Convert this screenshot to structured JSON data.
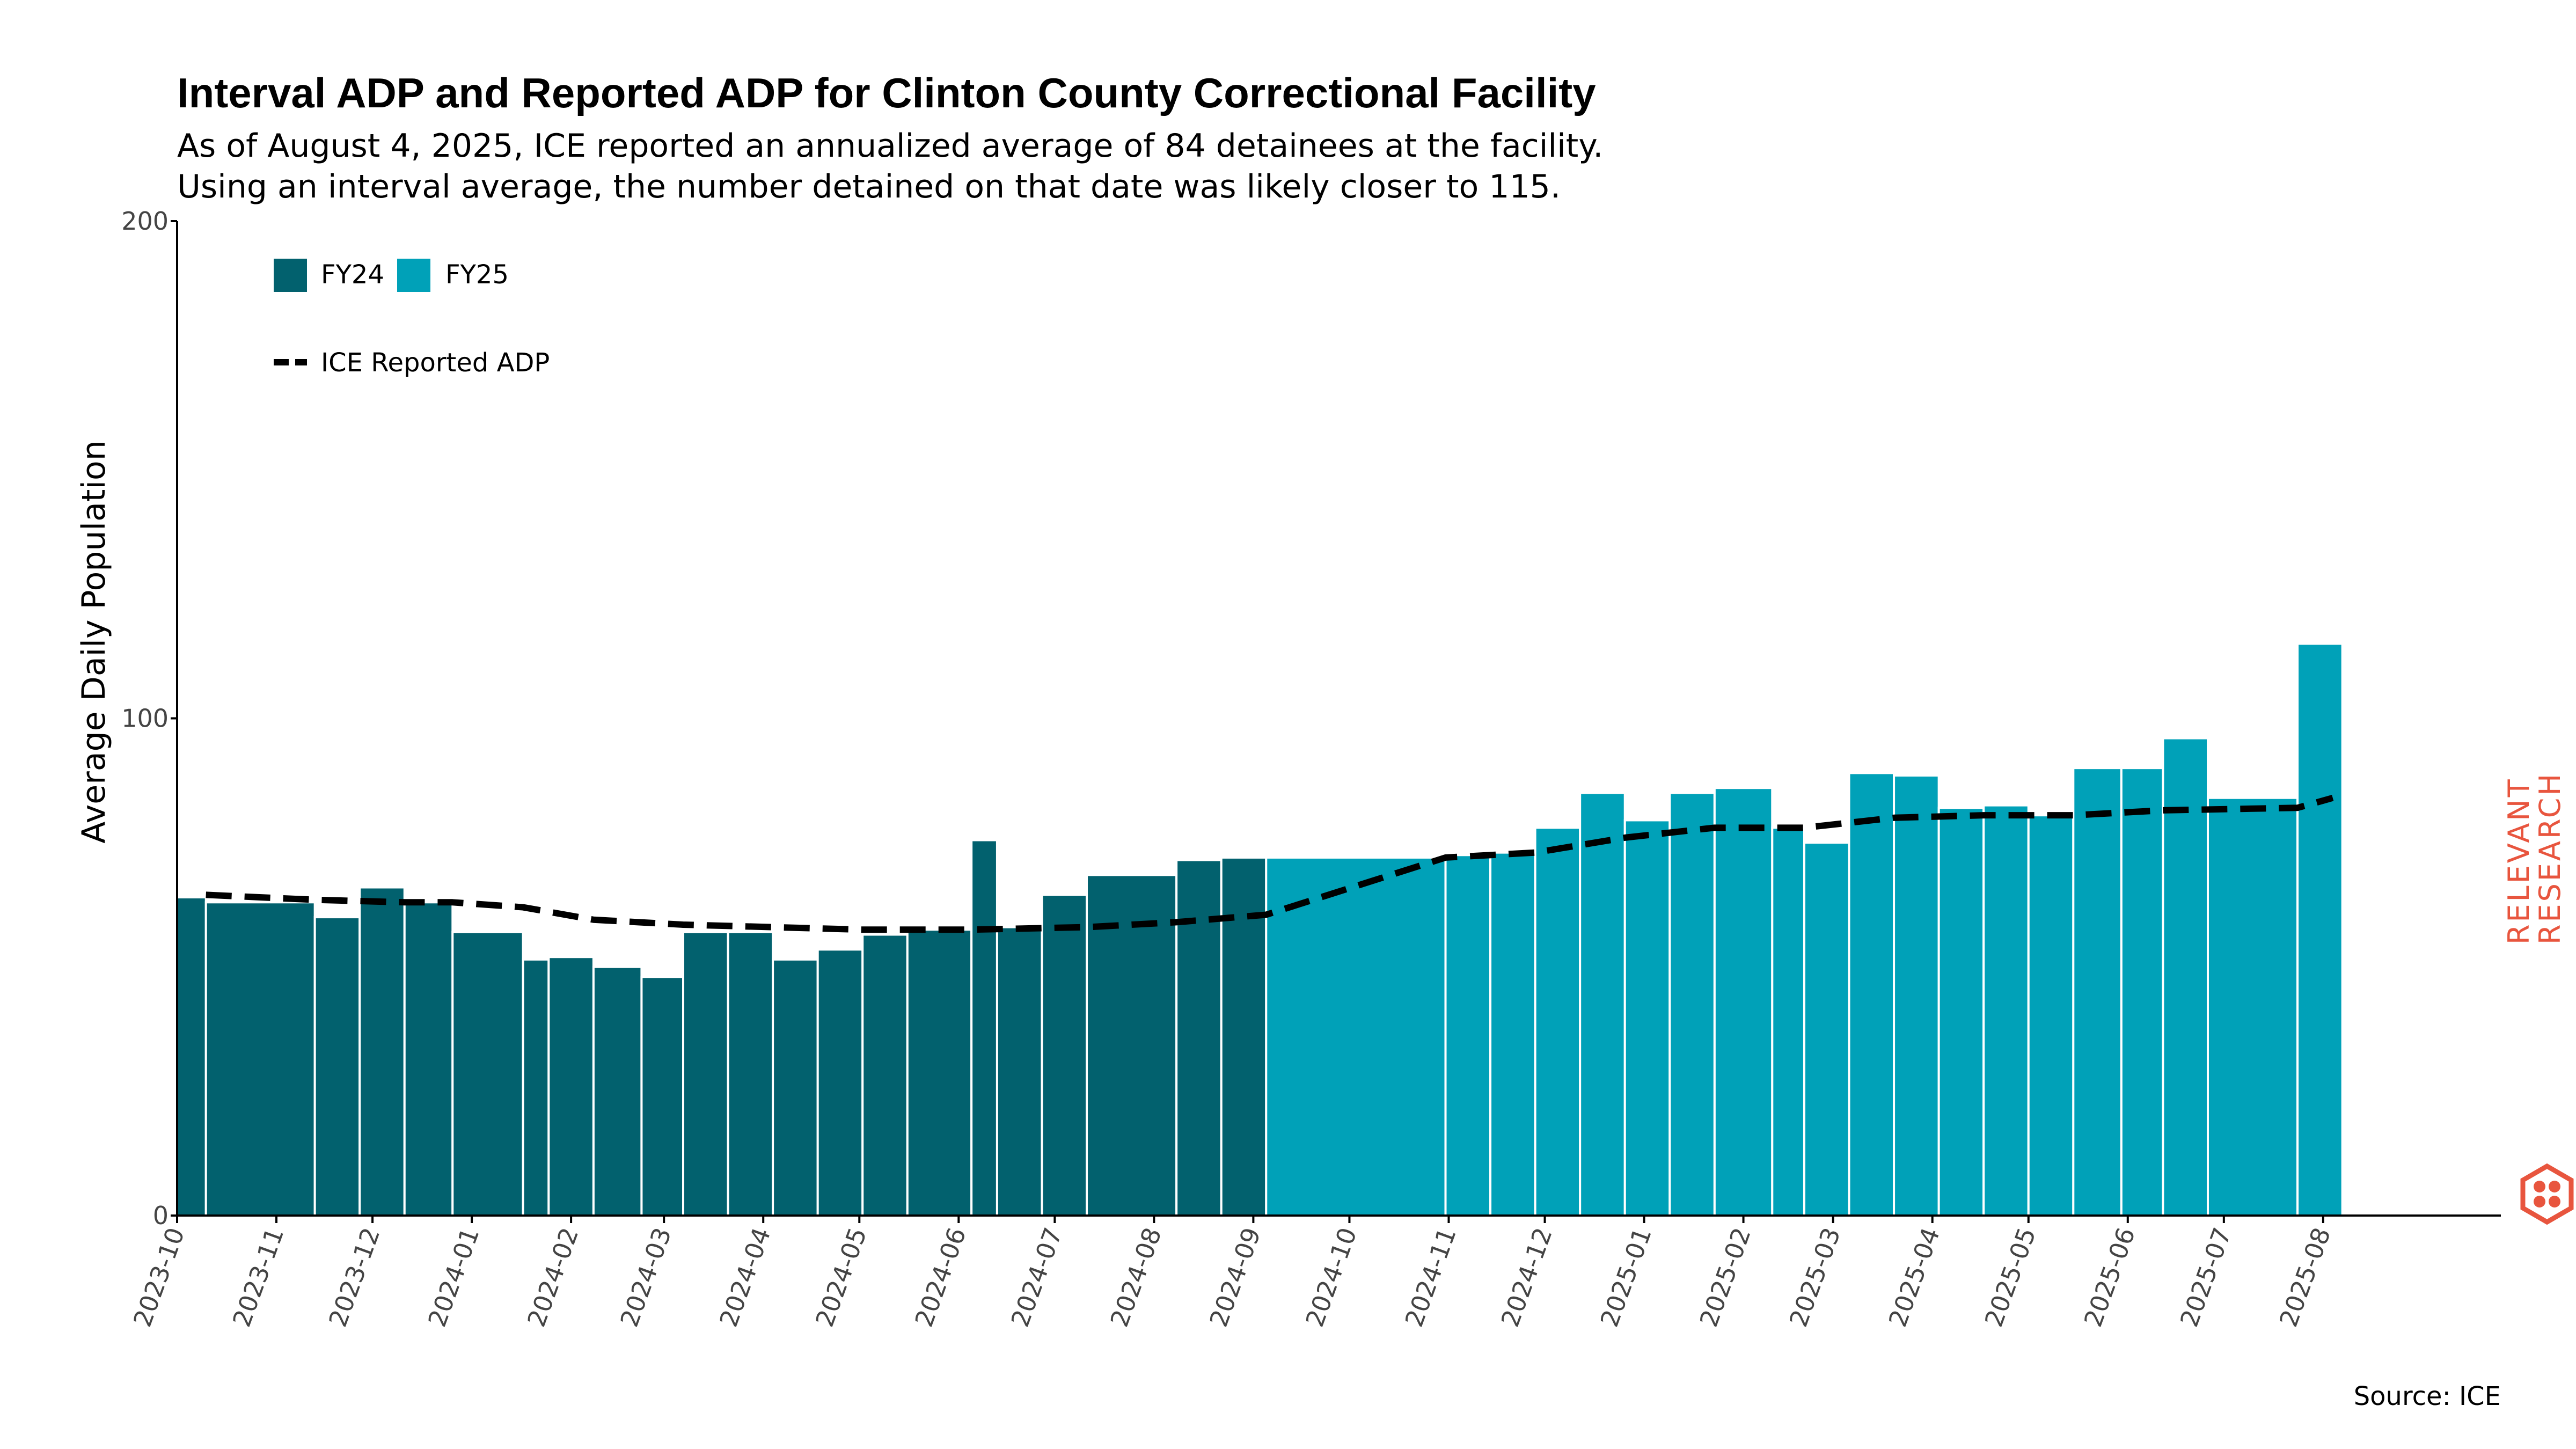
{
  "colors": {
    "fy24": "#02616e",
    "fy25": "#00a1b8",
    "line": "#000000",
    "brand": "#e8553e"
  },
  "brand": {
    "line1": "RELEVANT",
    "line2": "RESEARCH",
    "icon": "hexagon-dots-icon"
  },
  "chart_data": {
    "type": "bar",
    "title": "Interval ADP and Reported ADP for Clinton County Correctional Facility",
    "subtitle_lines": [
      "As of August 4, 2025, ICE reported an annualized average of 84 detainees at the facility.",
      "Using an interval average, the number detained on that date was likely closer to 115."
    ],
    "ylabel": "Average Daily Population",
    "xlabel": "",
    "ylim": [
      0,
      200
    ],
    "yticks": [
      0,
      100,
      200
    ],
    "xlim": [
      "2023-10-01",
      "2025-08-28"
    ],
    "xticks": [
      "2023-10",
      "2023-11",
      "2023-12",
      "2024-01",
      "2024-02",
      "2024-03",
      "2024-04",
      "2024-05",
      "2024-06",
      "2024-07",
      "2024-08",
      "2024-09",
      "2024-10",
      "2024-11",
      "2024-12",
      "2025-01",
      "2025-02",
      "2025-03",
      "2025-04",
      "2025-05",
      "2025-06",
      "2025-07",
      "2025-08"
    ],
    "legend": {
      "placement": "top-left",
      "series": [
        {
          "key": "fy24",
          "label": "FY24"
        },
        {
          "key": "fy25",
          "label": "FY25"
        }
      ],
      "line_label": "ICE Reported ADP"
    },
    "intervals": [
      {
        "start": "2023-10-01",
        "end": "2023-10-10",
        "value": 64,
        "fy": "FY24"
      },
      {
        "start": "2023-10-10",
        "end": "2023-11-13",
        "value": 63,
        "fy": "FY24"
      },
      {
        "start": "2023-11-13",
        "end": "2023-11-27",
        "value": 60,
        "fy": "FY24"
      },
      {
        "start": "2023-11-27",
        "end": "2023-12-11",
        "value": 66,
        "fy": "FY24"
      },
      {
        "start": "2023-12-11",
        "end": "2023-12-26",
        "value": 63,
        "fy": "FY24"
      },
      {
        "start": "2023-12-26",
        "end": "2024-01-17",
        "value": 57,
        "fy": "FY24"
      },
      {
        "start": "2024-01-17",
        "end": "2024-01-25",
        "value": 51.5,
        "fy": "FY24"
      },
      {
        "start": "2024-01-25",
        "end": "2024-02-08",
        "value": 52,
        "fy": "FY24"
      },
      {
        "start": "2024-02-08",
        "end": "2024-02-23",
        "value": 50,
        "fy": "FY24"
      },
      {
        "start": "2024-02-23",
        "end": "2024-03-07",
        "value": 48,
        "fy": "FY24"
      },
      {
        "start": "2024-03-07",
        "end": "2024-03-21",
        "value": 57,
        "fy": "FY24"
      },
      {
        "start": "2024-03-21",
        "end": "2024-04-04",
        "value": 57,
        "fy": "FY24"
      },
      {
        "start": "2024-04-04",
        "end": "2024-04-18",
        "value": 51.5,
        "fy": "FY24"
      },
      {
        "start": "2024-04-18",
        "end": "2024-05-02",
        "value": 53.5,
        "fy": "FY24"
      },
      {
        "start": "2024-05-02",
        "end": "2024-05-16",
        "value": 56.5,
        "fy": "FY24"
      },
      {
        "start": "2024-05-16",
        "end": "2024-06-05",
        "value": 57.5,
        "fy": "FY24"
      },
      {
        "start": "2024-06-05",
        "end": "2024-06-13",
        "value": 75.5,
        "fy": "FY24"
      },
      {
        "start": "2024-06-13",
        "end": "2024-06-27",
        "value": 58,
        "fy": "FY24"
      },
      {
        "start": "2024-06-27",
        "end": "2024-07-11",
        "value": 64.5,
        "fy": "FY24"
      },
      {
        "start": "2024-07-11",
        "end": "2024-08-08",
        "value": 68.5,
        "fy": "FY24"
      },
      {
        "start": "2024-08-08",
        "end": "2024-08-22",
        "value": 71.5,
        "fy": "FY24"
      },
      {
        "start": "2024-08-22",
        "end": "2024-09-05",
        "value": 72,
        "fy": "FY24"
      },
      {
        "start": "2024-09-05",
        "end": "2024-10-31",
        "value": 72,
        "fy": "FY25"
      },
      {
        "start": "2024-10-31",
        "end": "2024-11-14",
        "value": 72.5,
        "fy": "FY25"
      },
      {
        "start": "2024-11-14",
        "end": "2024-11-28",
        "value": 73,
        "fy": "FY25"
      },
      {
        "start": "2024-11-28",
        "end": "2024-12-12",
        "value": 78,
        "fy": "FY25"
      },
      {
        "start": "2024-12-12",
        "end": "2024-12-26",
        "value": 85,
        "fy": "FY25"
      },
      {
        "start": "2024-12-26",
        "end": "2025-01-09",
        "value": 79.5,
        "fy": "FY25"
      },
      {
        "start": "2025-01-09",
        "end": "2025-01-23",
        "value": 85,
        "fy": "FY25"
      },
      {
        "start": "2025-01-23",
        "end": "2025-02-10",
        "value": 86,
        "fy": "FY25"
      },
      {
        "start": "2025-02-10",
        "end": "2025-02-20",
        "value": 78,
        "fy": "FY25"
      },
      {
        "start": "2025-02-20",
        "end": "2025-03-06",
        "value": 75,
        "fy": "FY25"
      },
      {
        "start": "2025-03-06",
        "end": "2025-03-20",
        "value": 89,
        "fy": "FY25"
      },
      {
        "start": "2025-03-20",
        "end": "2025-04-03",
        "value": 88.5,
        "fy": "FY25"
      },
      {
        "start": "2025-04-03",
        "end": "2025-04-17",
        "value": 82,
        "fy": "FY25"
      },
      {
        "start": "2025-04-17",
        "end": "2025-05-01",
        "value": 82.5,
        "fy": "FY25"
      },
      {
        "start": "2025-05-01",
        "end": "2025-05-15",
        "value": 80.5,
        "fy": "FY25"
      },
      {
        "start": "2025-05-15",
        "end": "2025-05-30",
        "value": 90,
        "fy": "FY25"
      },
      {
        "start": "2025-05-30",
        "end": "2025-06-12",
        "value": 90,
        "fy": "FY25"
      },
      {
        "start": "2025-06-12",
        "end": "2025-06-26",
        "value": 96,
        "fy": "FY25"
      },
      {
        "start": "2025-06-26",
        "end": "2025-07-24",
        "value": 84,
        "fy": "FY25"
      },
      {
        "start": "2025-07-24",
        "end": "2025-08-07",
        "value": 115,
        "fy": "FY25"
      }
    ],
    "reported_adp": {
      "dates": [
        "2023-10-10",
        "2023-11-13",
        "2023-12-11",
        "2023-12-26",
        "2024-01-17",
        "2024-02-08",
        "2024-03-07",
        "2024-04-04",
        "2024-05-02",
        "2024-06-05",
        "2024-07-11",
        "2024-08-08",
        "2024-09-05",
        "2024-10-31",
        "2024-11-28",
        "2024-12-26",
        "2025-01-23",
        "2025-02-20",
        "2025-03-20",
        "2025-04-17",
        "2025-05-15",
        "2025-06-12",
        "2025-07-24",
        "2025-08-04"
      ],
      "values": [
        64.5,
        63.5,
        63,
        63,
        62,
        59.5,
        58.5,
        58,
        57.5,
        57.5,
        58,
        59,
        60.5,
        72,
        73,
        76,
        78,
        78,
        80,
        80.5,
        80.5,
        81.5,
        82,
        84
      ]
    },
    "source": "Source: ICE"
  }
}
